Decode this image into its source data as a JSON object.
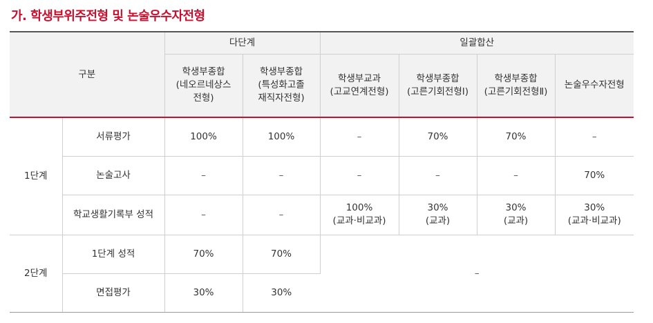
{
  "title": "가. 학생부위주전형 및 논술우수자전형",
  "header": {
    "group_label": "구분",
    "multi_stage": "다단계",
    "single_stage": "일괄합산",
    "columns": [
      {
        "line1": "학생부종합",
        "line2": "(네오르네상스",
        "line3": "전형)"
      },
      {
        "line1": "학생부종합",
        "line2": "(특성화고졸",
        "line3": "재직자전형)"
      },
      {
        "line1": "학생부교과",
        "line2": "(고교연계전형)"
      },
      {
        "line1": "학생부종합",
        "line2": "(고른기회전형Ⅰ)"
      },
      {
        "line1": "학생부종합",
        "line2": "(고른기회전형Ⅱ)"
      },
      {
        "line1": "논술우수자전형"
      }
    ]
  },
  "stage1": {
    "label": "1단계",
    "rows": [
      {
        "item": "서류평가",
        "values": [
          "100%",
          "100%",
          "–",
          "70%",
          "70%",
          "–"
        ]
      },
      {
        "item": "논술고사",
        "values": [
          "–",
          "–",
          "–",
          "–",
          "–",
          "70%"
        ]
      },
      {
        "item": "학교생활기록부 성적",
        "values": [
          {
            "main": "–"
          },
          {
            "main": "–"
          },
          {
            "main": "100%",
            "sub": "(교과·비교과)"
          },
          {
            "main": "30%",
            "sub": "(교과)"
          },
          {
            "main": "30%",
            "sub": "(교과)"
          },
          {
            "main": "30%",
            "sub": "(교과·비교과)"
          }
        ]
      }
    ]
  },
  "stage2": {
    "label": "2단계",
    "rows": [
      {
        "item": "1단계 성적",
        "values": [
          "70%",
          "70%"
        ]
      },
      {
        "item": "면접평가",
        "values": [
          "30%",
          "30%"
        ]
      }
    ],
    "merged_value": "–"
  }
}
